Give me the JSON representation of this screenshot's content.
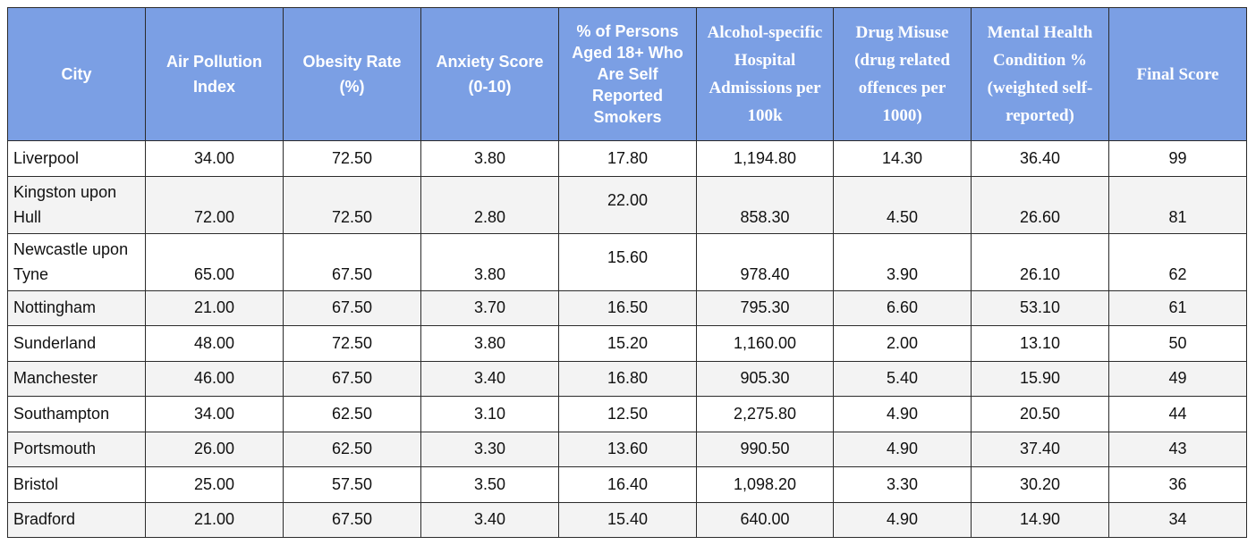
{
  "headers": {
    "city": "City",
    "air_pollution": "Air Pollution Index",
    "obesity": "Obesity Rate (%)",
    "anxiety": "Anxiety Score (0-10)",
    "smokers": "% of Persons Aged 18+  Who Are Self Reported Smokers",
    "alcohol": "Alcohol-specific Hospital Admissions per 100k",
    "drug": "Drug Misuse (drug related offences per 1000)",
    "mental_health": "Mental Health Condition % (weighted self-reported)",
    "final": "Final Score"
  },
  "rows": [
    {
      "city": "Liverpool",
      "air": "34.00",
      "obesity": "72.50",
      "anxiety": "3.80",
      "smokers": "17.80",
      "alcohol": "1,194.80",
      "drug": "14.30",
      "mental": "36.40",
      "final": "99"
    },
    {
      "city": "Kingston upon Hull",
      "air": "72.00",
      "obesity": "72.50",
      "anxiety": "2.80",
      "smokers": "22.00",
      "alcohol": "858.30",
      "drug": "4.50",
      "mental": "26.60",
      "final": "81"
    },
    {
      "city": "Newcastle upon Tyne",
      "air": "65.00",
      "obesity": "67.50",
      "anxiety": "3.80",
      "smokers": "15.60",
      "alcohol": "978.40",
      "drug": "3.90",
      "mental": "26.10",
      "final": "62"
    },
    {
      "city": "Nottingham",
      "air": "21.00",
      "obesity": "67.50",
      "anxiety": "3.70",
      "smokers": "16.50",
      "alcohol": "795.30",
      "drug": "6.60",
      "mental": "53.10",
      "final": "61"
    },
    {
      "city": "Sunderland",
      "air": "48.00",
      "obesity": "72.50",
      "anxiety": "3.80",
      "smokers": "15.20",
      "alcohol": "1,160.00",
      "drug": "2.00",
      "mental": "13.10",
      "final": "50"
    },
    {
      "city": "Manchester",
      "air": "46.00",
      "obesity": "67.50",
      "anxiety": "3.40",
      "smokers": "16.80",
      "alcohol": "905.30",
      "drug": "5.40",
      "mental": "15.90",
      "final": "49"
    },
    {
      "city": "Southampton",
      "air": "34.00",
      "obesity": "62.50",
      "anxiety": "3.10",
      "smokers": "12.50",
      "alcohol": "2,275.80",
      "drug": "4.90",
      "mental": "20.50",
      "final": "44"
    },
    {
      "city": "Portsmouth",
      "air": "26.00",
      "obesity": "62.50",
      "anxiety": "3.30",
      "smokers": "13.60",
      "alcohol": "990.50",
      "drug": "4.90",
      "mental": "37.40",
      "final": "43"
    },
    {
      "city": "Bristol",
      "air": "25.00",
      "obesity": "57.50",
      "anxiety": "3.50",
      "smokers": "16.40",
      "alcohol": "1,098.20",
      "drug": "3.30",
      "mental": "30.20",
      "final": "36"
    },
    {
      "city": "Bradford",
      "air": "21.00",
      "obesity": "67.50",
      "anxiety": "3.40",
      "smokers": "15.40",
      "alcohol": "640.00",
      "drug": "4.90",
      "mental": "14.90",
      "final": "34"
    }
  ],
  "colors": {
    "header_bg": "#7b9fe4",
    "header_text": "#ffffff",
    "row_alt_bg": "#f3f3f3",
    "border": "#2b2b2b"
  }
}
